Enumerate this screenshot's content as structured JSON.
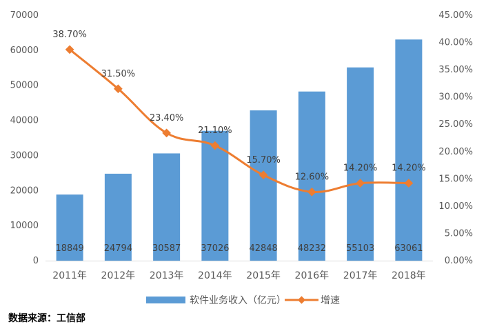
{
  "chart_data": {
    "type": "bar",
    "categories": [
      "2011年",
      "2012年",
      "2013年",
      "2014年",
      "2015年",
      "2016年",
      "2017年",
      "2018年"
    ],
    "series": [
      {
        "name": "软件业务收入（亿元）",
        "type": "bar",
        "axis": "left",
        "values": [
          18849,
          24794,
          30587,
          37026,
          42848,
          48232,
          55103,
          63061
        ],
        "labels": [
          "18849",
          "24794",
          "30587",
          "37026",
          "42848",
          "48232",
          "55103",
          "63061"
        ],
        "color": "#5B9BD5"
      },
      {
        "name": "增速",
        "type": "line",
        "axis": "right",
        "values": [
          38.7,
          31.5,
          23.4,
          21.1,
          15.7,
          12.6,
          14.2,
          14.2
        ],
        "labels": [
          "38.70%",
          "31.50%",
          "23.40%",
          "21.10%",
          "15.70%",
          "12.60%",
          "14.20%",
          "14.20%"
        ],
        "color": "#ED7D31"
      }
    ],
    "y_left": {
      "lim": [
        0,
        70000
      ],
      "ticks": [
        0,
        10000,
        20000,
        30000,
        40000,
        50000,
        60000,
        70000
      ],
      "tick_labels": [
        "0",
        "10000",
        "20000",
        "30000",
        "40000",
        "50000",
        "60000",
        "70000"
      ]
    },
    "y_right": {
      "lim": [
        0,
        45
      ],
      "ticks": [
        0,
        5,
        10,
        15,
        20,
        25,
        30,
        35,
        40,
        45
      ],
      "tick_labels": [
        "0.00%",
        "5.00%",
        "10.00%",
        "15.00%",
        "20.00%",
        "25.00%",
        "30.00%",
        "35.00%",
        "40.00%",
        "45.00%"
      ]
    },
    "grid": false,
    "legend_position": "bottom"
  },
  "source_note": "数据来源：工信部"
}
